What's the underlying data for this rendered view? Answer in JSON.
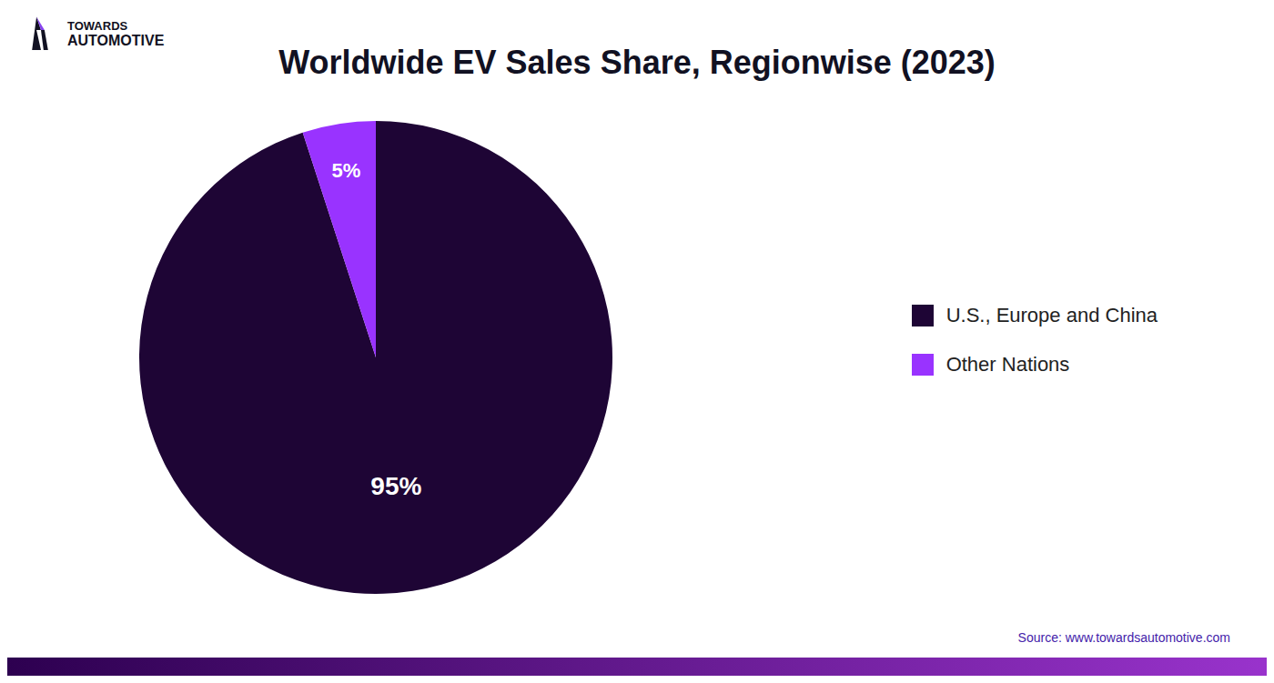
{
  "chart_data": {
    "type": "pie",
    "title": "Worldwide EV Sales Share, Regionwise (2023)",
    "categories": [
      "U.S., Europe and China",
      "Other Nations"
    ],
    "values": [
      95,
      5
    ],
    "value_labels": [
      "95%",
      "5%"
    ],
    "colors": [
      "#1e0535",
      "#9933ff"
    ],
    "data_labels": true,
    "legend": "right",
    "annotations": [
      "Source: www.towardsautomotive.com",
      "TOWARDS",
      "AUTOMOTIVE"
    ]
  }
}
